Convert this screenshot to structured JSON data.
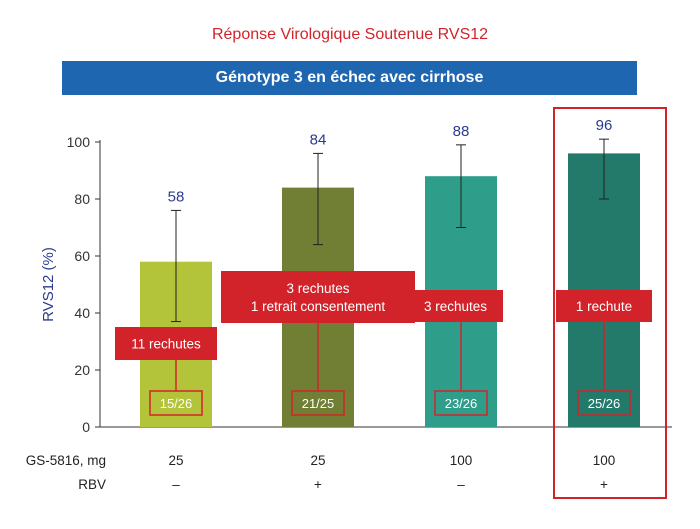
{
  "header": {
    "title": "Réponse Virologique Soutenue RVS12",
    "subtitle": "Génotype 3 en échec avec cirrhose"
  },
  "chart_data": {
    "type": "bar",
    "ylabel": "RVS12 (%)",
    "ylim": [
      0,
      100
    ],
    "yticks": [
      0,
      20,
      40,
      60,
      80,
      100
    ],
    "categories": [
      "25 / –",
      "25 / +",
      "100 / –",
      "100 / +"
    ],
    "values": [
      58,
      84,
      88,
      96
    ],
    "value_labels": [
      "58",
      "84",
      "88",
      "96"
    ],
    "error_low": [
      37,
      64,
      70,
      80
    ],
    "error_high": [
      76,
      96,
      99,
      101
    ],
    "colors": [
      "#b3c43a",
      "#707f33",
      "#2e9e8a",
      "#237a6a"
    ],
    "relapse_labels": [
      [
        "11 rechutes"
      ],
      [
        "3 rechutes",
        "1 retrait consentement"
      ],
      [
        "3 rechutes"
      ],
      [
        "1 rechute"
      ]
    ],
    "fractions": [
      "15/26",
      "21/25",
      "23/26",
      "25/26"
    ],
    "rows": [
      {
        "label": "GS-5816, mg",
        "values": [
          "25",
          "25",
          "100",
          "100"
        ]
      },
      {
        "label": "RBV",
        "values": [
          "–",
          "+",
          "–",
          "+"
        ]
      }
    ],
    "highlighted_index": 3,
    "accent_color": "#d2232a",
    "axis_text_color": "#2b3a8f"
  }
}
